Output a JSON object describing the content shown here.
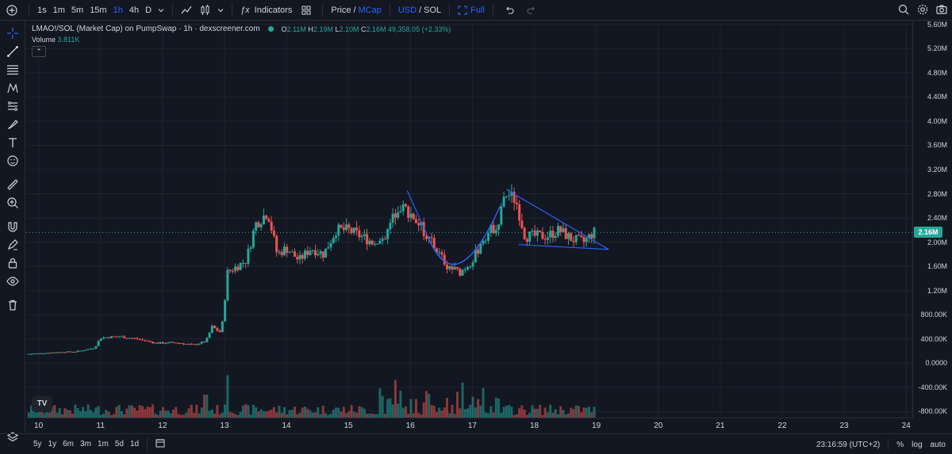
{
  "toolbar": {
    "intervals": [
      "1s",
      "1m",
      "5m",
      "15m",
      "1h",
      "4h",
      "D"
    ],
    "active_interval": "1h",
    "indicators_label": "Indicators",
    "price_label": "Price",
    "slash1": "/",
    "mcap_label": "MCap",
    "usd_label": "USD",
    "slash2": "/",
    "sol_label": "SOL",
    "full_label": "Full"
  },
  "legend": {
    "title": "LMAO!/SOL (Market Cap) on PumpSwap · 1h · dexscreener.com",
    "o_label": "O",
    "o_value": "2.11M",
    "h_label": "H",
    "h_value": "2.19M",
    "l_label": "L",
    "l_value": "2.10M",
    "c_label": "C",
    "c_value": "2.16M",
    "change": "49,358.05 (+2.33%)",
    "volume_label": "Volume",
    "volume_value": "3.811K",
    "collapse_glyph": "⌃"
  },
  "current_price_tag": "2.16M",
  "accent_colors": {
    "up": "#26a69a",
    "down": "#ef5350",
    "drawing": "#2962ff",
    "accent": "#2962ff"
  },
  "bottombar": {
    "ranges": [
      "5y",
      "1y",
      "6m",
      "3m",
      "1m",
      "5d",
      "1d"
    ],
    "clock": "23:16:59 (UTC+2)",
    "percent_label": "%",
    "log_label": "log",
    "auto_label": "auto"
  },
  "tv_logo": "TV",
  "chart_data": {
    "type": "candlestick",
    "price_axis_labels": [
      "5.60M",
      "5.20M",
      "4.80M",
      "4.40M",
      "4.00M",
      "3.60M",
      "3.20M",
      "2.80M",
      "2.40M",
      "2.00M",
      "1.60M",
      "1.20M",
      "800.00K",
      "400.00K",
      "0.0000",
      "-400.00K",
      "-800.00K"
    ],
    "price_axis_values": [
      5600000,
      5200000,
      4800000,
      4400000,
      4000000,
      3600000,
      3200000,
      2800000,
      2400000,
      2000000,
      1600000,
      1200000,
      800000,
      400000,
      0,
      -400000,
      -800000
    ],
    "time_axis_labels": [
      "10",
      "11",
      "12",
      "13",
      "14",
      "15",
      "16",
      "17",
      "18",
      "19",
      "20",
      "21",
      "22",
      "23",
      "24"
    ],
    "ylim": [
      -900000,
      5650000
    ],
    "x_range_days": [
      9.8,
      24.1
    ],
    "current_value": 2160000,
    "candles_close_approx": [
      [
        9.8,
        150000
      ],
      [
        10.0,
        160000
      ],
      [
        10.3,
        180000
      ],
      [
        10.6,
        190000
      ],
      [
        10.9,
        250000
      ],
      [
        11.0,
        420000
      ],
      [
        11.3,
        440000
      ],
      [
        11.6,
        400000
      ],
      [
        11.9,
        330000
      ],
      [
        12.2,
        340000
      ],
      [
        12.5,
        300000
      ],
      [
        12.7,
        360000
      ],
      [
        12.8,
        600000
      ],
      [
        12.95,
        500000
      ],
      [
        13.05,
        1500000
      ],
      [
        13.2,
        1600000
      ],
      [
        13.35,
        1700000
      ],
      [
        13.5,
        2300000
      ],
      [
        13.7,
        2500000
      ],
      [
        13.85,
        1800000
      ],
      [
        14.0,
        1900000
      ],
      [
        14.2,
        1700000
      ],
      [
        14.4,
        1900000
      ],
      [
        14.6,
        1800000
      ],
      [
        14.8,
        2200000
      ],
      [
        15.0,
        2200000
      ],
      [
        15.2,
        2100000
      ],
      [
        15.4,
        2000000
      ],
      [
        15.6,
        2100000
      ],
      [
        15.8,
        2600000
      ],
      [
        16.0,
        2500000
      ],
      [
        16.2,
        2200000
      ],
      [
        16.4,
        1900000
      ],
      [
        16.6,
        1600000
      ],
      [
        16.8,
        1500000
      ],
      [
        17.0,
        1700000
      ],
      [
        17.2,
        2100000
      ],
      [
        17.4,
        2300000
      ],
      [
        17.55,
        2800000
      ],
      [
        17.7,
        2700000
      ],
      [
        17.85,
        2100000
      ],
      [
        18.0,
        2100000
      ],
      [
        18.2,
        2100000
      ],
      [
        18.4,
        2200000
      ],
      [
        18.6,
        2050000
      ],
      [
        18.8,
        2000000
      ],
      [
        18.95,
        2160000
      ]
    ],
    "volume_spikes": [
      [
        12.7,
        380000
      ],
      [
        13.05,
        700000
      ],
      [
        15.75,
        620000
      ],
      [
        16.85,
        580000
      ],
      [
        17.1,
        650000
      ]
    ],
    "drawings": {
      "cup_curve": "rounding bottom from day 16 to day 17.45",
      "triangle_upper": [
        [
          17.55,
          2870000
        ],
        [
          19.2,
          1880000
        ]
      ],
      "triangle_lower": [
        [
          17.75,
          1960000
        ],
        [
          19.2,
          1880000
        ]
      ],
      "left_trend": [
        [
          15.95,
          2850000
        ],
        [
          16.3,
          2050000
        ]
      ]
    }
  }
}
